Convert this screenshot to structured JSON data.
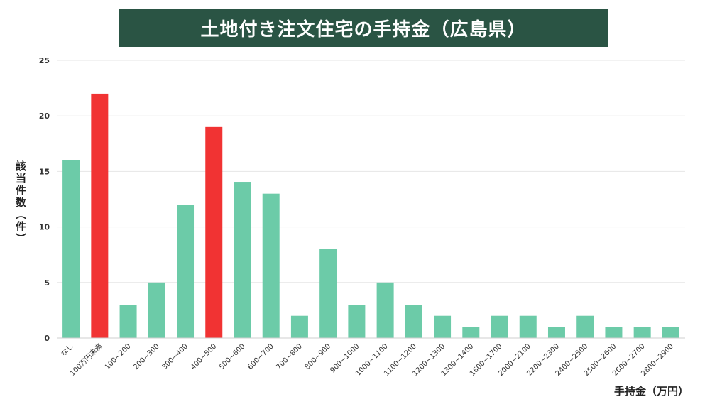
{
  "chart_data": {
    "type": "bar",
    "title": "土地付き注文住宅の手持金（広島県）",
    "ylabel": "該当件数（件）",
    "xlabel": "手持金（万円）",
    "ylim": [
      0,
      25
    ],
    "yticks": [
      0,
      5,
      10,
      15,
      20,
      25
    ],
    "grid": true,
    "categories": [
      "なし",
      "100万円未満",
      "100~200",
      "200~300",
      "300~400",
      "400~500",
      "500~600",
      "600~700",
      "700~800",
      "800~900",
      "900~1000",
      "1000~1100",
      "1100~1200",
      "1200~1300",
      "1300~1400",
      "1600~1700",
      "2000~2100",
      "2200~2300",
      "2400~2500",
      "2500~2600",
      "2600~2700",
      "2800~2900"
    ],
    "values": [
      16,
      22,
      3,
      5,
      12,
      19,
      14,
      13,
      2,
      8,
      3,
      5,
      3,
      2,
      1,
      2,
      2,
      1,
      2,
      1,
      1,
      1
    ],
    "highlight": [
      false,
      true,
      false,
      false,
      false,
      true,
      false,
      false,
      false,
      false,
      false,
      false,
      false,
      false,
      false,
      false,
      false,
      false,
      false,
      false,
      false,
      false
    ],
    "colors": {
      "bar": "#6ccba8",
      "highlight": "#f13333",
      "grid": "#e6e6e6",
      "title_bg": "#2a5444"
    }
  }
}
